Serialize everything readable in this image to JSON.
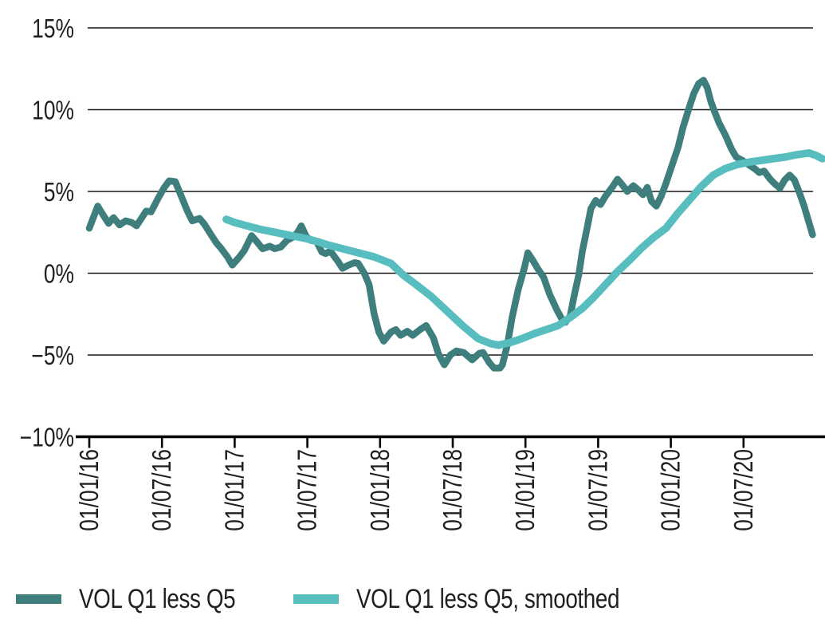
{
  "chart_data": {
    "type": "line",
    "title": "",
    "x_axis": {
      "unit": "date (dd/mm/yy), months since 01/01/16",
      "tick_months": [
        0,
        6,
        12,
        18,
        24,
        30,
        36,
        42,
        48,
        54
      ],
      "tick_labels": [
        "01/01/16",
        "01/07/16",
        "01/01/17",
        "01/07/17",
        "01/01/18",
        "01/07/18",
        "01/01/19",
        "01/07/19",
        "01/01/20",
        "01/07/20"
      ],
      "label_rotation_deg": -90
    },
    "y_axis": {
      "unit": "%",
      "tick_values": [
        15,
        10,
        5,
        0,
        -5,
        -10
      ],
      "tick_labels": [
        "15%",
        "10%",
        "5%",
        "0%",
        "−5%",
        "−10%"
      ],
      "range": [
        -10,
        15
      ],
      "gridlines": true
    },
    "legend": {
      "position": "bottom-left",
      "items": [
        "VOL Q1 less Q5",
        "VOL Q1 less Q5, smoothed"
      ]
    },
    "series": [
      {
        "name": "VOL Q1 less Q5",
        "color": "#3E7F7E",
        "stroke_width": 8.5,
        "points": [
          [
            0,
            2.75
          ],
          [
            0.7,
            4.1
          ],
          [
            1.2,
            3.5
          ],
          [
            1.6,
            3.05
          ],
          [
            2.0,
            3.4
          ],
          [
            2.5,
            2.95
          ],
          [
            3.0,
            3.2
          ],
          [
            3.5,
            3.1
          ],
          [
            3.9,
            2.9
          ],
          [
            4.7,
            3.8
          ],
          [
            5.1,
            3.75
          ],
          [
            5.7,
            4.6
          ],
          [
            6.2,
            5.25
          ],
          [
            6.6,
            5.65
          ],
          [
            7.1,
            5.6
          ],
          [
            7.6,
            4.7
          ],
          [
            8.1,
            3.8
          ],
          [
            8.5,
            3.2
          ],
          [
            9.1,
            3.35
          ],
          [
            9.5,
            3.0
          ],
          [
            10.1,
            2.3
          ],
          [
            10.5,
            1.85
          ],
          [
            10.9,
            1.5
          ],
          [
            11.4,
            1.0
          ],
          [
            11.8,
            0.5
          ],
          [
            12.4,
            1.0
          ],
          [
            12.8,
            1.4
          ],
          [
            13.4,
            2.3
          ],
          [
            13.8,
            1.95
          ],
          [
            14.3,
            1.5
          ],
          [
            14.9,
            1.65
          ],
          [
            15.3,
            1.5
          ],
          [
            15.8,
            1.6
          ],
          [
            16.3,
            2.0
          ],
          [
            16.8,
            2.2
          ],
          [
            17.2,
            2.5
          ],
          [
            17.5,
            2.9
          ],
          [
            17.9,
            2.25
          ],
          [
            18.3,
            2.0
          ],
          [
            18.75,
            1.95
          ],
          [
            19.2,
            1.3
          ],
          [
            19.5,
            1.2
          ],
          [
            19.9,
            1.35
          ],
          [
            20.5,
            0.75
          ],
          [
            20.9,
            0.3
          ],
          [
            21.4,
            0.5
          ],
          [
            21.9,
            0.65
          ],
          [
            22.2,
            0.6
          ],
          [
            22.7,
            0.0
          ],
          [
            23.1,
            -0.7
          ],
          [
            23.5,
            -2.45
          ],
          [
            23.9,
            -3.6
          ],
          [
            24.3,
            -4.15
          ],
          [
            24.9,
            -3.6
          ],
          [
            25.3,
            -3.45
          ],
          [
            25.7,
            -3.8
          ],
          [
            26.25,
            -3.55
          ],
          [
            26.7,
            -3.8
          ],
          [
            27.3,
            -3.45
          ],
          [
            27.8,
            -3.2
          ],
          [
            28.4,
            -3.95
          ],
          [
            28.8,
            -4.9
          ],
          [
            29.3,
            -5.6
          ],
          [
            29.8,
            -5.0
          ],
          [
            30.3,
            -4.75
          ],
          [
            30.9,
            -4.85
          ],
          [
            31.3,
            -5.1
          ],
          [
            31.6,
            -5.3
          ],
          [
            32.2,
            -4.9
          ],
          [
            32.5,
            -4.85
          ],
          [
            33.0,
            -5.45
          ],
          [
            33.4,
            -5.8
          ],
          [
            33.9,
            -5.8
          ],
          [
            34.1,
            -5.6
          ],
          [
            34.5,
            -4.4
          ],
          [
            34.9,
            -2.7
          ],
          [
            35.4,
            -1.0
          ],
          [
            35.9,
            0.3
          ],
          [
            36.2,
            1.25
          ],
          [
            36.6,
            0.8
          ],
          [
            37.0,
            0.3
          ],
          [
            37.5,
            -0.25
          ],
          [
            38.0,
            -1.3
          ],
          [
            38.6,
            -2.25
          ],
          [
            39.0,
            -2.8
          ],
          [
            39.3,
            -3.0
          ],
          [
            39.7,
            -2.6
          ],
          [
            40.0,
            -1.45
          ],
          [
            40.4,
            -0.1
          ],
          [
            40.7,
            1.35
          ],
          [
            41.1,
            2.8
          ],
          [
            41.4,
            3.95
          ],
          [
            41.8,
            4.45
          ],
          [
            42.2,
            4.2
          ],
          [
            42.6,
            4.7
          ],
          [
            43.2,
            5.3
          ],
          [
            43.6,
            5.75
          ],
          [
            44.0,
            5.4
          ],
          [
            44.4,
            5.0
          ],
          [
            44.9,
            5.35
          ],
          [
            45.3,
            5.1
          ],
          [
            45.7,
            4.8
          ],
          [
            46.05,
            5.25
          ],
          [
            46.4,
            4.4
          ],
          [
            46.8,
            4.1
          ],
          [
            47.2,
            4.7
          ],
          [
            47.6,
            5.5
          ],
          [
            48.1,
            6.6
          ],
          [
            48.6,
            7.7
          ],
          [
            49.0,
            8.9
          ],
          [
            49.5,
            10.1
          ],
          [
            49.9,
            11.0
          ],
          [
            50.3,
            11.6
          ],
          [
            50.7,
            11.8
          ],
          [
            51.0,
            11.35
          ],
          [
            51.3,
            10.5
          ],
          [
            51.6,
            9.9
          ],
          [
            52.0,
            9.15
          ],
          [
            52.5,
            8.45
          ],
          [
            53.0,
            7.6
          ],
          [
            53.4,
            7.1
          ],
          [
            53.9,
            6.9
          ],
          [
            54.3,
            6.7
          ],
          [
            54.9,
            6.4
          ],
          [
            55.3,
            6.15
          ],
          [
            55.7,
            6.25
          ],
          [
            56.2,
            5.75
          ],
          [
            56.6,
            5.45
          ],
          [
            57.0,
            5.2
          ],
          [
            57.4,
            5.7
          ],
          [
            57.8,
            6.0
          ],
          [
            58.2,
            5.7
          ],
          [
            58.6,
            4.95
          ],
          [
            59.0,
            4.1
          ],
          [
            59.4,
            3.1
          ],
          [
            59.7,
            2.35
          ]
        ]
      },
      {
        "name": "VOL Q1 less Q5, smoothed",
        "color": "#57BDBE",
        "stroke_width": 9.5,
        "points": [
          [
            11.3,
            3.3
          ],
          [
            12.0,
            3.1
          ],
          [
            13.0,
            2.9
          ],
          [
            14.0,
            2.7
          ],
          [
            15.0,
            2.55
          ],
          [
            16.0,
            2.4
          ],
          [
            17.0,
            2.25
          ],
          [
            18.0,
            2.1
          ],
          [
            19.0,
            1.9
          ],
          [
            19.6,
            1.75
          ],
          [
            20.9,
            1.5
          ],
          [
            22.2,
            1.25
          ],
          [
            23.5,
            1.0
          ],
          [
            24.9,
            0.6
          ],
          [
            25.9,
            -0.1
          ],
          [
            26.8,
            -0.6
          ],
          [
            28.2,
            -1.4
          ],
          [
            29.5,
            -2.3
          ],
          [
            30.8,
            -3.2
          ],
          [
            32.1,
            -4.0
          ],
          [
            33.1,
            -4.3
          ],
          [
            33.75,
            -4.4
          ],
          [
            34.7,
            -4.25
          ],
          [
            35.7,
            -4.0
          ],
          [
            36.7,
            -3.7
          ],
          [
            37.7,
            -3.45
          ],
          [
            38.7,
            -3.2
          ],
          [
            39.7,
            -2.7
          ],
          [
            40.7,
            -2.15
          ],
          [
            41.6,
            -1.5
          ],
          [
            42.6,
            -0.7
          ],
          [
            43.6,
            0.1
          ],
          [
            44.6,
            0.8
          ],
          [
            45.6,
            1.55
          ],
          [
            46.6,
            2.2
          ],
          [
            47.6,
            2.75
          ],
          [
            48.55,
            3.65
          ],
          [
            49.5,
            4.45
          ],
          [
            50.5,
            5.3
          ],
          [
            51.5,
            6.0
          ],
          [
            52.5,
            6.4
          ],
          [
            53.5,
            6.65
          ],
          [
            54.5,
            6.8
          ],
          [
            55.5,
            6.9
          ],
          [
            56.4,
            7.0
          ],
          [
            57.4,
            7.1
          ],
          [
            58.4,
            7.25
          ],
          [
            59.4,
            7.35
          ],
          [
            60.0,
            7.2
          ],
          [
            60.5,
            7.0
          ]
        ]
      }
    ]
  },
  "colors": {
    "background": "#FFFFFF",
    "text": "#231F20",
    "gridline": "#1B1B1B",
    "axis": "#000000",
    "series_dark": "#3E7F7E",
    "series_light": "#57BDBE"
  }
}
